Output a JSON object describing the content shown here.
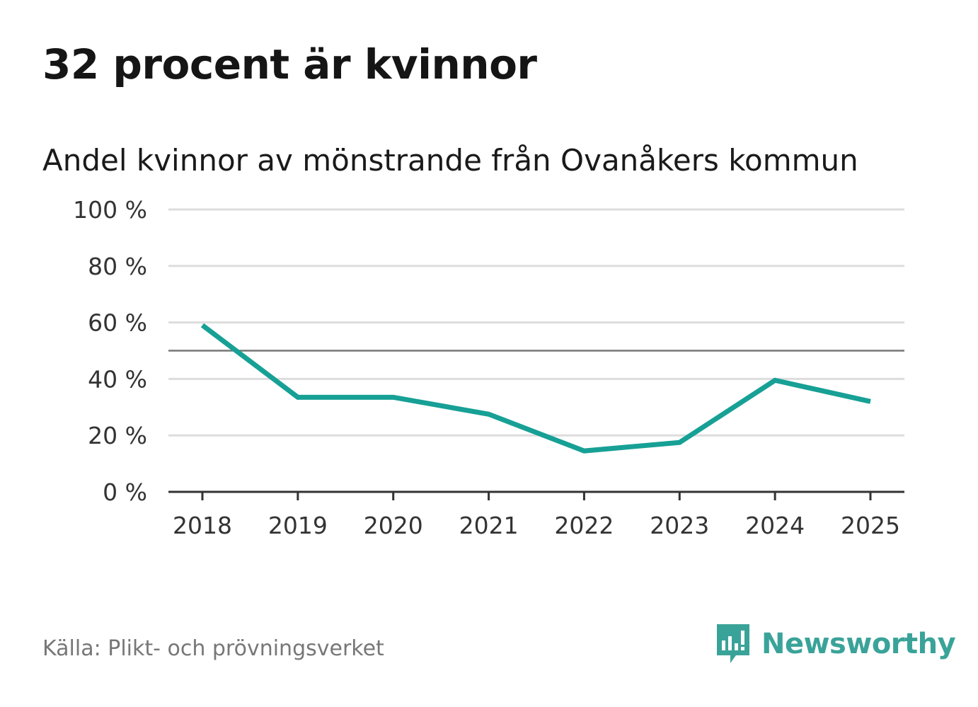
{
  "title": "32 procent är kvinnor",
  "subtitle": "Andel kvinnor av mönstrande från Ovanåkers kommun",
  "source": "Källa: Plikt- och prövningsverket",
  "logo": {
    "text": "Newsworthy",
    "icon": "newsworthy-logo-icon"
  },
  "colors": {
    "line": "#17a095",
    "grid": "#dddddd",
    "reference": "#777777",
    "axis": "#333333",
    "brand": "#3aa399"
  },
  "chart_data": {
    "type": "line",
    "title": "32 procent är kvinnor",
    "subtitle": "Andel kvinnor av mönstrande från Ovanåkers kommun",
    "xlabel": "",
    "ylabel": "",
    "categories": [
      "2018",
      "2019",
      "2020",
      "2021",
      "2022",
      "2023",
      "2024",
      "2025"
    ],
    "series": [
      {
        "name": "Andel kvinnor",
        "values": [
          59,
          33.5,
          33.5,
          27.5,
          14.5,
          17.5,
          39.5,
          32
        ]
      }
    ],
    "ylim": [
      0,
      100
    ],
    "yticks": [
      0,
      20,
      40,
      60,
      80,
      100
    ],
    "ytick_labels": [
      "0 %",
      "20 %",
      "40 %",
      "60 %",
      "80 %",
      "100 %"
    ],
    "reference_line": 50,
    "grid": true,
    "legend": "none"
  }
}
